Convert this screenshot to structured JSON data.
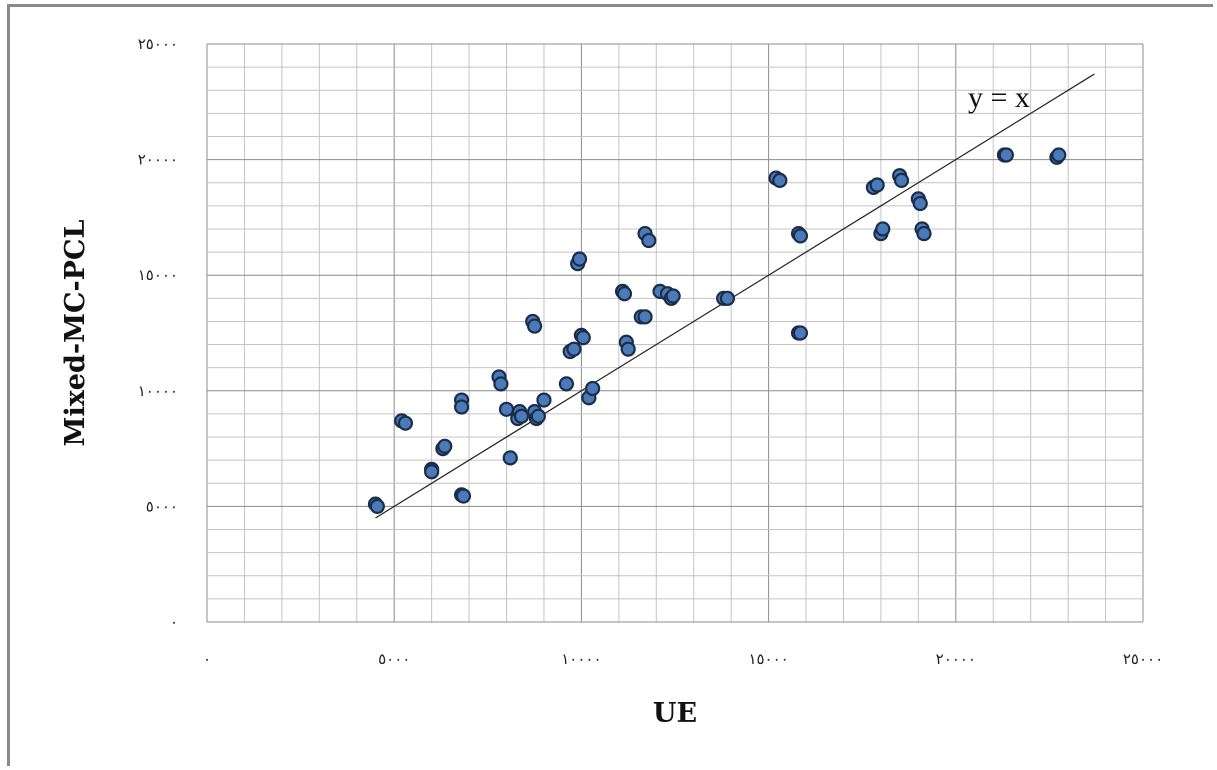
{
  "chart_data": {
    "type": "scatter",
    "title": "",
    "xlabel": "UE",
    "ylabel": "Mixed-MC-PCL",
    "xlim": [
      0,
      25000
    ],
    "ylim": [
      0,
      25000
    ],
    "x_ticks": [
      0,
      5000,
      10000,
      15000,
      20000,
      25000
    ],
    "y_ticks": [
      0,
      5000,
      10000,
      15000,
      20000,
      25000
    ],
    "x_tick_labels": [
      "٠",
      "٥٠٠٠",
      "١٠٠٠٠",
      "١٥٠٠٠",
      "٢٠٠٠٠",
      "٢٥٠٠٠"
    ],
    "y_tick_labels": [
      "٠",
      "٥٠٠٠",
      "١٠٠٠٠",
      "١٥٠٠٠",
      "٢٠٠٠٠",
      "٢٥٠٠٠"
    ],
    "minor_grid_step": 1000,
    "grid": true,
    "marker_color": "#4a7ab8",
    "marker_edge_color": "#1b2d4a",
    "reference_line": {
      "label": "y = x",
      "from": [
        4500,
        4500
      ],
      "to": [
        23700,
        23700
      ]
    },
    "points": [
      [
        4500,
        5100
      ],
      [
        4550,
        5000
      ],
      [
        5200,
        8700
      ],
      [
        5300,
        8600
      ],
      [
        6000,
        6600
      ],
      [
        6000,
        6500
      ],
      [
        6300,
        7500
      ],
      [
        6350,
        7600
      ],
      [
        6800,
        9600
      ],
      [
        6800,
        9300
      ],
      [
        6800,
        5500
      ],
      [
        6850,
        5450
      ],
      [
        7800,
        10600
      ],
      [
        7850,
        10300
      ],
      [
        8000,
        9200
      ],
      [
        8100,
        7100
      ],
      [
        8300,
        8800
      ],
      [
        8350,
        9100
      ],
      [
        8400,
        8900
      ],
      [
        8700,
        13000
      ],
      [
        8750,
        12800
      ],
      [
        8750,
        9100
      ],
      [
        8800,
        8800
      ],
      [
        8850,
        8900
      ],
      [
        9000,
        9600
      ],
      [
        9600,
        10300
      ],
      [
        9700,
        11700
      ],
      [
        9800,
        11800
      ],
      [
        9900,
        15500
      ],
      [
        9950,
        15700
      ],
      [
        10000,
        12400
      ],
      [
        10050,
        12300
      ],
      [
        10200,
        9700
      ],
      [
        10300,
        10100
      ],
      [
        11100,
        14300
      ],
      [
        11150,
        14200
      ],
      [
        11200,
        12100
      ],
      [
        11250,
        11800
      ],
      [
        11600,
        13200
      ],
      [
        11700,
        13200
      ],
      [
        11700,
        16800
      ],
      [
        11800,
        16500
      ],
      [
        12100,
        14300
      ],
      [
        12300,
        14200
      ],
      [
        12400,
        14000
      ],
      [
        12450,
        14100
      ],
      [
        13800,
        14000
      ],
      [
        13900,
        14000
      ],
      [
        15200,
        19200
      ],
      [
        15300,
        19100
      ],
      [
        15800,
        16800
      ],
      [
        15850,
        16700
      ],
      [
        15800,
        12500
      ],
      [
        15850,
        12500
      ],
      [
        17800,
        18800
      ],
      [
        17900,
        18900
      ],
      [
        18000,
        16800
      ],
      [
        18050,
        17000
      ],
      [
        18500,
        19300
      ],
      [
        18550,
        19100
      ],
      [
        19000,
        18300
      ],
      [
        19050,
        18100
      ],
      [
        19100,
        17000
      ],
      [
        19150,
        16800
      ],
      [
        21300,
        20200
      ],
      [
        21350,
        20200
      ],
      [
        22700,
        20100
      ],
      [
        22750,
        20200
      ]
    ]
  }
}
